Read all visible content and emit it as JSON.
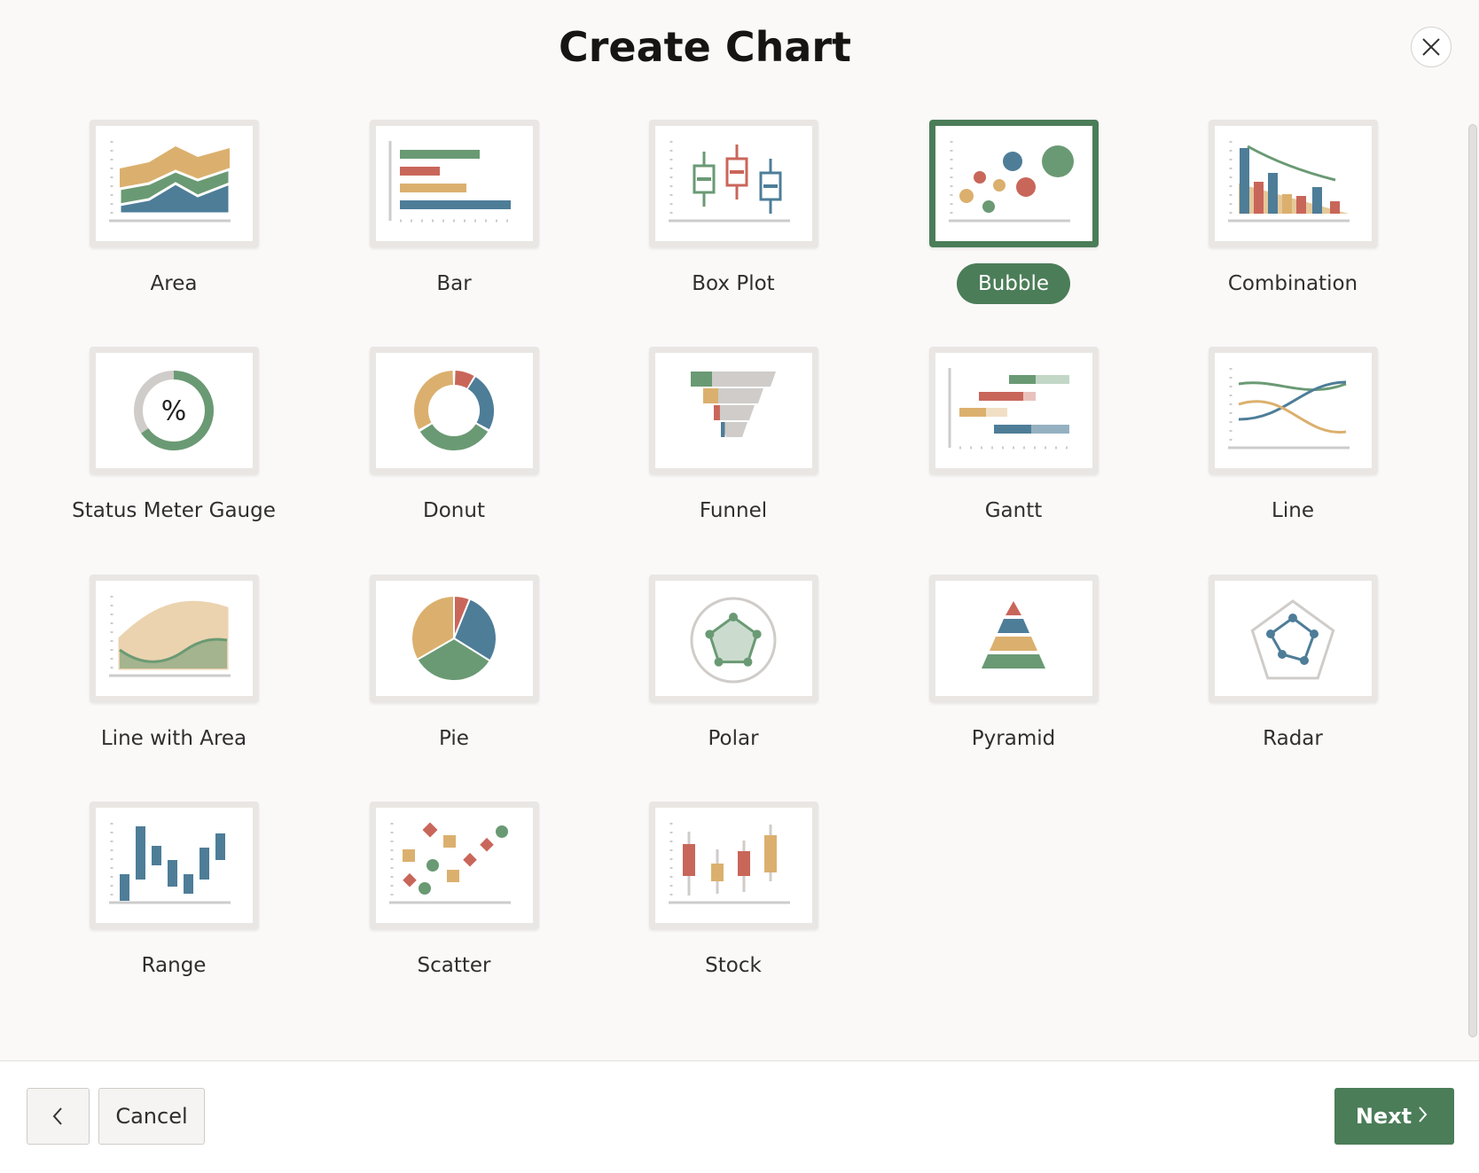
{
  "header": {
    "title": "Create Chart"
  },
  "items": [
    {
      "label": "Area"
    },
    {
      "label": "Bar"
    },
    {
      "label": "Box Plot"
    },
    {
      "label": "Bubble",
      "selected": true
    },
    {
      "label": "Combination"
    },
    {
      "label": "Status Meter Gauge",
      "symbol": "%"
    },
    {
      "label": "Donut"
    },
    {
      "label": "Funnel"
    },
    {
      "label": "Gantt"
    },
    {
      "label": "Line"
    },
    {
      "label": "Line with Area"
    },
    {
      "label": "Pie"
    },
    {
      "label": "Polar"
    },
    {
      "label": "Pyramid"
    },
    {
      "label": "Radar"
    },
    {
      "label": "Range"
    },
    {
      "label": "Scatter"
    },
    {
      "label": "Stock"
    }
  ],
  "footer": {
    "cancel": "Cancel",
    "next": "Next"
  }
}
